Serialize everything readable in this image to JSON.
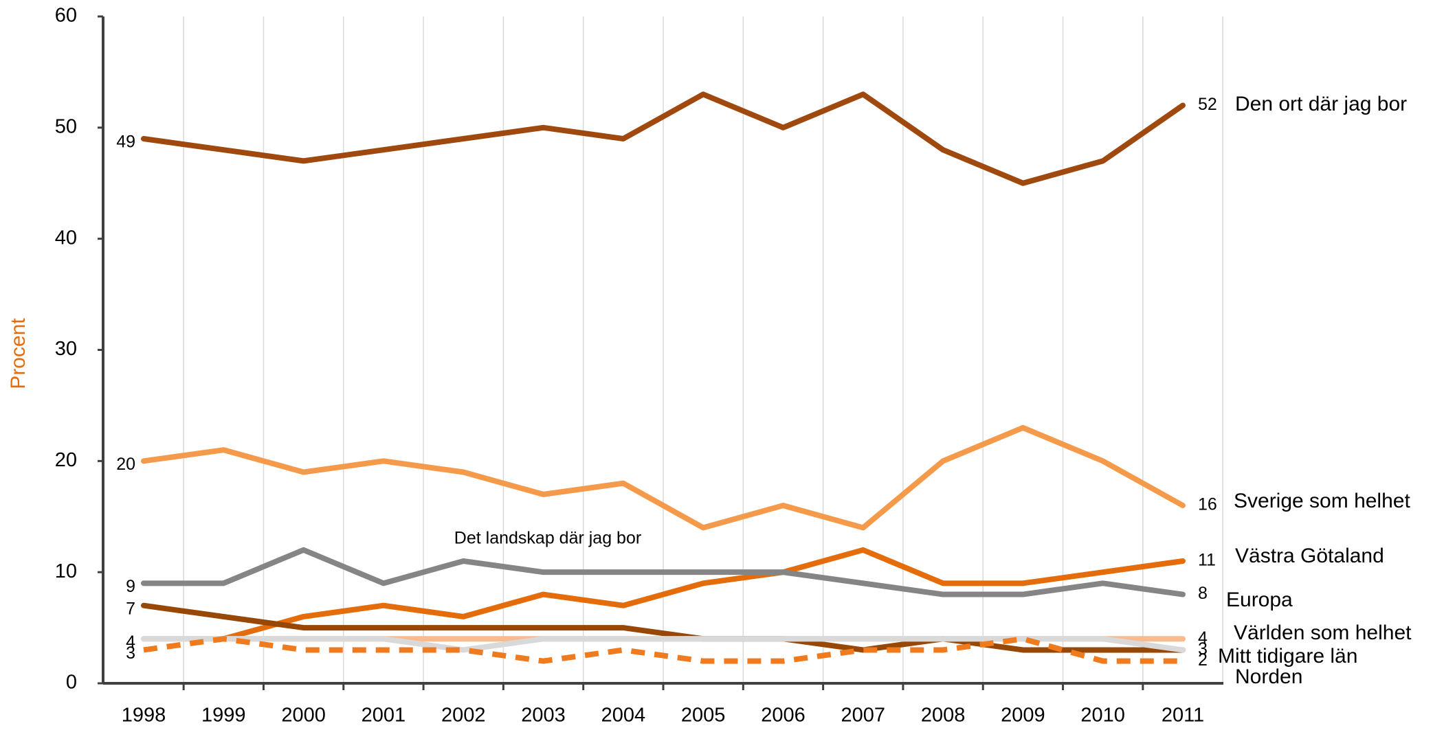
{
  "chart_data": {
    "type": "line",
    "y_label": "Procent",
    "categories": [
      "1998",
      "1999",
      "2000",
      "2001",
      "2002",
      "2003",
      "2004",
      "2005",
      "2006",
      "2007",
      "2008",
      "2009",
      "2010",
      "2011"
    ],
    "ylim": [
      0,
      60
    ],
    "yticks": [
      0,
      10,
      20,
      30,
      40,
      50,
      60
    ],
    "grid": true,
    "series": [
      {
        "name": "Den ort där jag bor",
        "color": "#a0490e",
        "values": [
          49,
          48,
          47,
          48,
          49,
          50,
          49,
          53,
          50,
          53,
          48,
          45,
          47,
          52
        ],
        "labeled_points": [
          0,
          13
        ]
      },
      {
        "name": "Sverige som helhet",
        "color": "#f59a4a",
        "values": [
          20,
          21,
          19,
          20,
          19,
          17,
          18,
          14,
          16,
          14,
          20,
          23,
          20,
          16
        ],
        "labeled_points": [
          0,
          13
        ]
      },
      {
        "name": "Västra Götaland",
        "color": "#e46c0a",
        "values": [
          null,
          4,
          6,
          7,
          6,
          8,
          7,
          9,
          10,
          12,
          9,
          9,
          10,
          11
        ],
        "labeled_points": [
          13
        ]
      },
      {
        "name": "Europa",
        "color": "#858585",
        "values": [
          9,
          9,
          12,
          9,
          11,
          10,
          10,
          10,
          10,
          9,
          8,
          8,
          9,
          8
        ],
        "labeled_points": [
          0,
          13
        ]
      },
      {
        "name": "Det landskap där jag bor",
        "color": "#974706",
        "values": [
          7,
          6,
          5,
          5,
          5,
          5,
          5,
          4,
          4,
          3,
          4,
          3,
          3,
          3
        ],
        "labeled_points": [
          0,
          13
        ]
      },
      {
        "name": "Världen som helhet",
        "color": "#fbb98e",
        "values": [
          4,
          4,
          4,
          4,
          4,
          4,
          4,
          4,
          4,
          4,
          4,
          4,
          4,
          4
        ],
        "labeled_points": [
          0,
          13
        ]
      },
      {
        "name": "Norden",
        "color": "#d9d9d9",
        "values": [
          4,
          4,
          4,
          4,
          3,
          4,
          4,
          4,
          4,
          4,
          4,
          4,
          4,
          3
        ],
        "labeled_points": []
      },
      {
        "name": "Mitt tidigare län",
        "color": "#f07a1e",
        "dash": true,
        "values": [
          3,
          4,
          3,
          3,
          3,
          2,
          3,
          2,
          2,
          3,
          3,
          4,
          2,
          2
        ],
        "labeled_points": [
          0,
          13
        ]
      }
    ]
  }
}
